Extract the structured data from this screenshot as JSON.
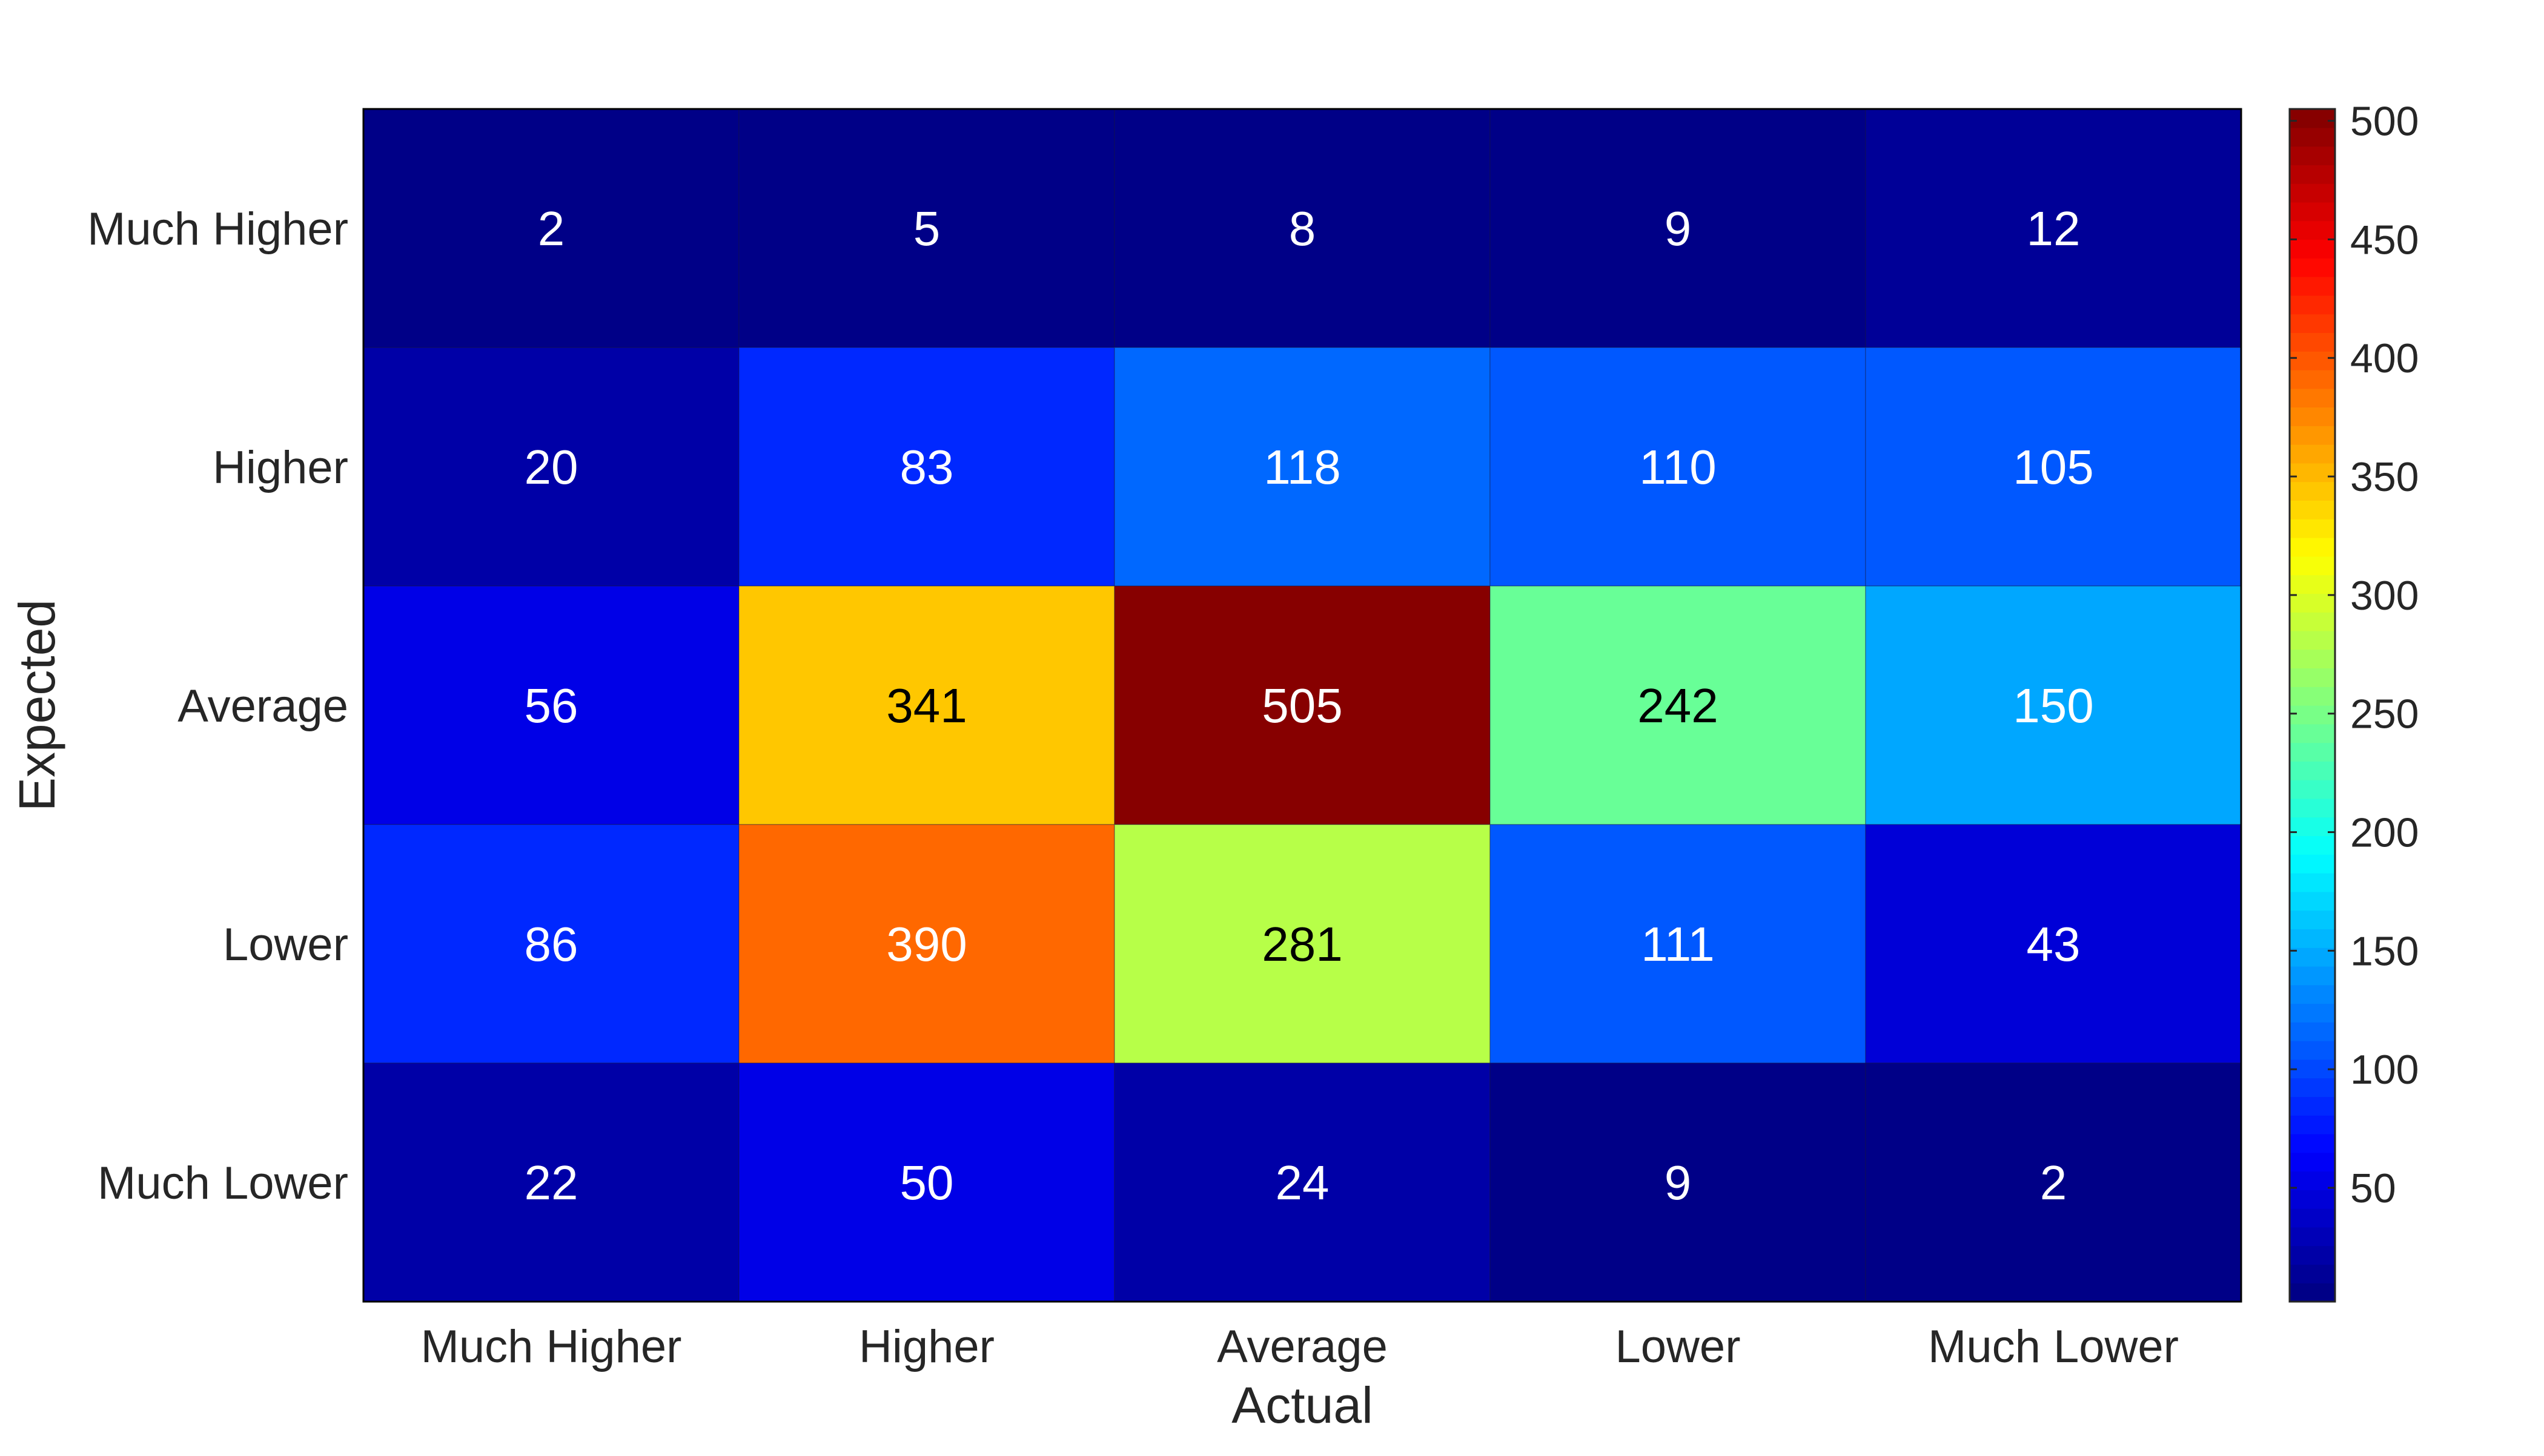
{
  "chart_data": {
    "type": "heatmap",
    "xlabel": "Actual",
    "ylabel": "Expected",
    "x_categories": [
      "Much Higher",
      "Higher",
      "Average",
      "Lower",
      "Much Lower"
    ],
    "y_categories": [
      "Much Higher",
      "Higher",
      "Average",
      "Lower",
      "Much Lower"
    ],
    "values": [
      [
        2,
        5,
        8,
        9,
        12
      ],
      [
        20,
        83,
        118,
        110,
        105
      ],
      [
        56,
        341,
        505,
        242,
        150
      ],
      [
        86,
        390,
        281,
        111,
        43
      ],
      [
        22,
        50,
        24,
        9,
        2
      ]
    ],
    "colormap": "jet",
    "color_range": [
      2,
      505
    ],
    "colorbar_ticks": [
      50,
      100,
      150,
      200,
      250,
      300,
      350,
      400,
      450,
      500
    ],
    "colorbar_position": "right",
    "grid": false
  }
}
